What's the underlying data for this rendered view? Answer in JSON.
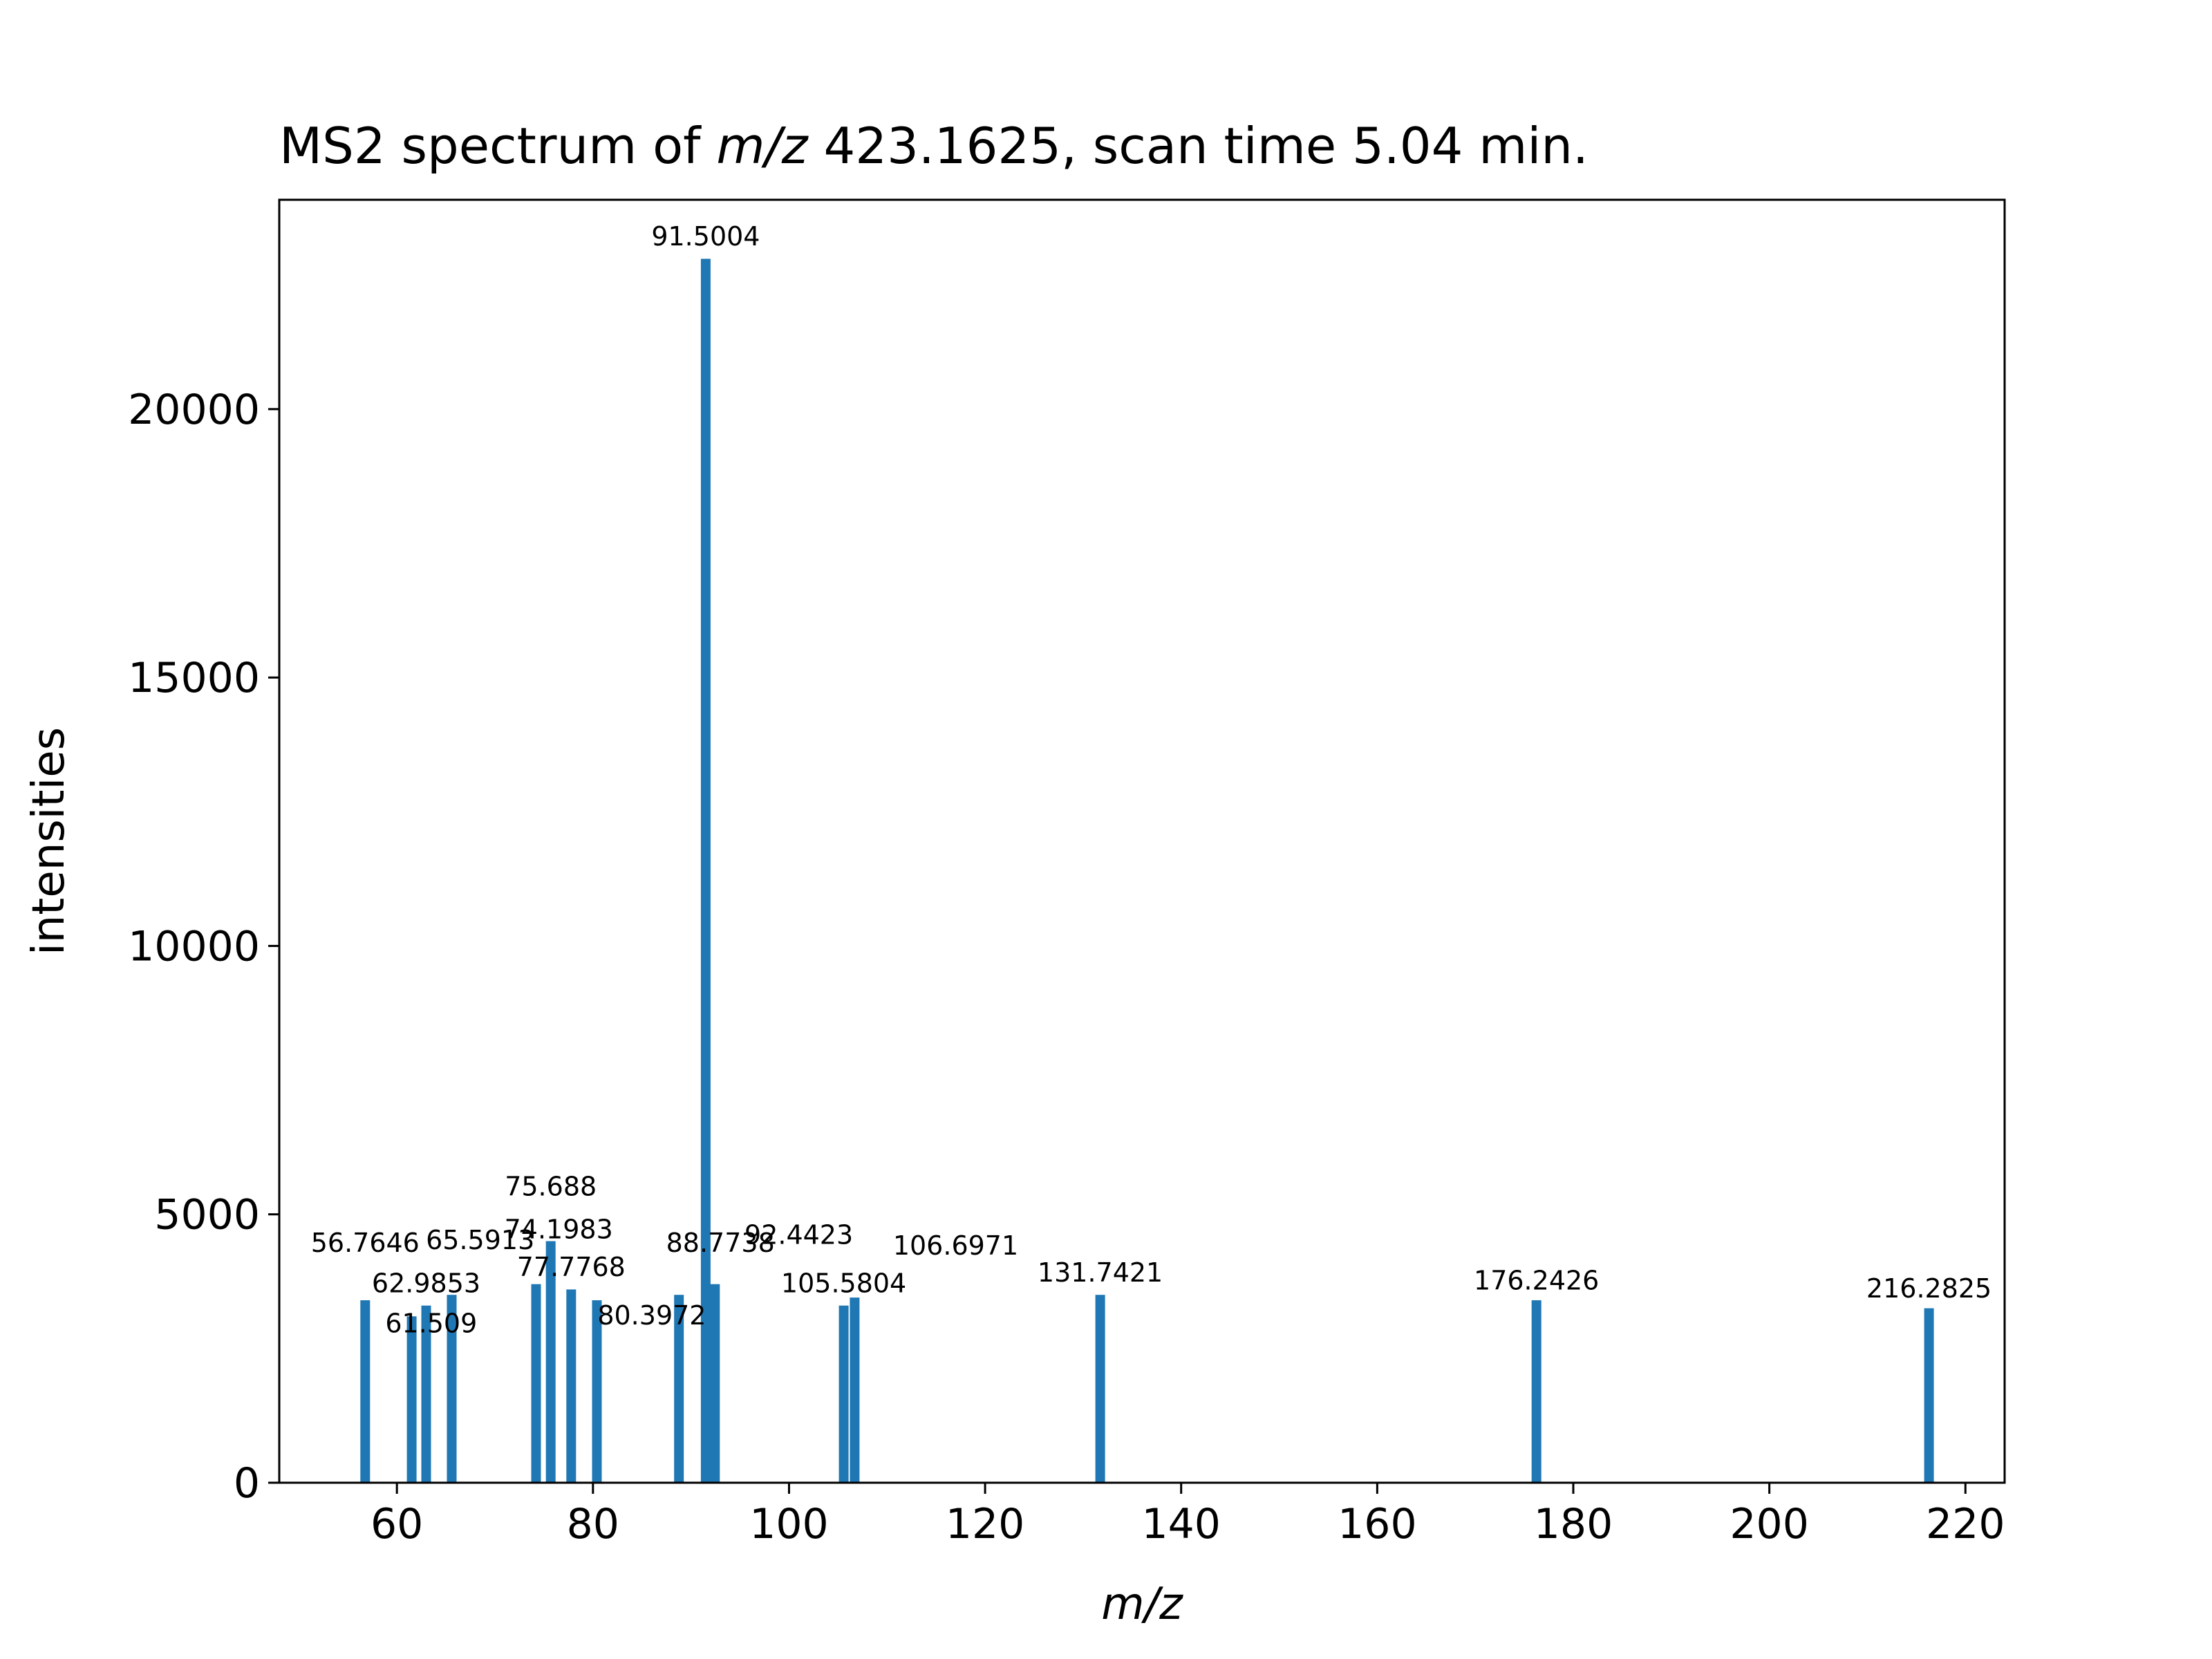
{
  "chart_data": {
    "type": "bar",
    "title_prefix": "MS2 spectrum of ",
    "title_italic": "m/z",
    "title_suffix": " 423.1625, scan time 5.04 min.",
    "xlabel": "m/z",
    "ylabel": "intensities",
    "xlim": [
      48,
      224
    ],
    "ylim": [
      0,
      23900
    ],
    "xticks": [
      60,
      80,
      100,
      120,
      140,
      160,
      180,
      200,
      220
    ],
    "yticks": [
      0,
      5000,
      10000,
      15000,
      20000
    ],
    "bar_color": "#1f77b4",
    "peaks": [
      {
        "mz": 56.7646,
        "intensity": 3400,
        "label": "56.7646",
        "label_mz": 56.7646,
        "label_y": 4300
      },
      {
        "mz": 61.509,
        "intensity": 3100,
        "label": "61.509",
        "label_mz": 63.5,
        "label_y": 2800
      },
      {
        "mz": 62.9853,
        "intensity": 3300,
        "label": "62.9853",
        "label_mz": 62.9853,
        "label_y": 3550
      },
      {
        "mz": 65.5913,
        "intensity": 3500,
        "label": "65.5913",
        "label_mz": 68.5,
        "label_y": 4350
      },
      {
        "mz": 74.1983,
        "intensity": 3700,
        "label": "74.1983",
        "label_mz": 76.5,
        "label_y": 4550
      },
      {
        "mz": 75.688,
        "intensity": 4500,
        "label": "75.688",
        "label_mz": 75.688,
        "label_y": 5350
      },
      {
        "mz": 77.7768,
        "intensity": 3600,
        "label": "77.7768",
        "label_mz": 77.7768,
        "label_y": 3850
      },
      {
        "mz": 80.3972,
        "intensity": 3400,
        "label": "80.3972",
        "label_mz": 86.0,
        "label_y": 2950
      },
      {
        "mz": 88.7738,
        "intensity": 3500,
        "label": "88.7738",
        "label_mz": 93.0,
        "label_y": 4300
      },
      {
        "mz": 91.5004,
        "intensity": 22800,
        "label": "91.5004",
        "label_mz": 91.5004,
        "label_y": 23050
      },
      {
        "mz": 92.4423,
        "intensity": 3700,
        "label": "92.4423",
        "label_mz": 101.0,
        "label_y": 4450
      },
      {
        "mz": 105.5804,
        "intensity": 3300,
        "label": "105.5804",
        "label_mz": 105.5804,
        "label_y": 3550
      },
      {
        "mz": 106.6971,
        "intensity": 3450,
        "label": "106.6971",
        "label_mz": 117.0,
        "label_y": 4250
      },
      {
        "mz": 131.7421,
        "intensity": 3500,
        "label": "131.7421",
        "label_mz": 131.7421,
        "label_y": 3750
      },
      {
        "mz": 176.2426,
        "intensity": 3400,
        "label": "176.2426",
        "label_mz": 176.2426,
        "label_y": 3600
      },
      {
        "mz": 216.2825,
        "intensity": 3250,
        "label": "216.2825",
        "label_mz": 216.2825,
        "label_y": 3450
      }
    ]
  }
}
